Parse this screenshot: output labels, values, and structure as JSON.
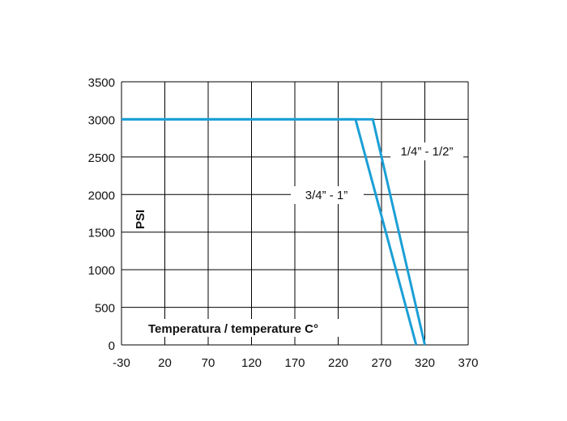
{
  "chart_data": {
    "type": "line",
    "title": "",
    "xlabel": "Temperatura / temperature C°",
    "ylabel": "PSI",
    "xlim": [
      -30,
      370
    ],
    "ylim": [
      0,
      3500
    ],
    "x_ticks": [
      -30,
      20,
      70,
      120,
      170,
      220,
      270,
      320,
      370
    ],
    "y_ticks": [
      0,
      500,
      1000,
      1500,
      2000,
      2500,
      3000,
      3500
    ],
    "grid": true,
    "line_color": "#1b9fd6",
    "series": [
      {
        "name": "1/4” - 1/2”",
        "x": [
          -30,
          260,
          320
        ],
        "y": [
          3000,
          3000,
          0
        ]
      },
      {
        "name": "3/4” - 1”",
        "x": [
          -30,
          240,
          310
        ],
        "y": [
          3000,
          3000,
          0
        ]
      }
    ]
  }
}
